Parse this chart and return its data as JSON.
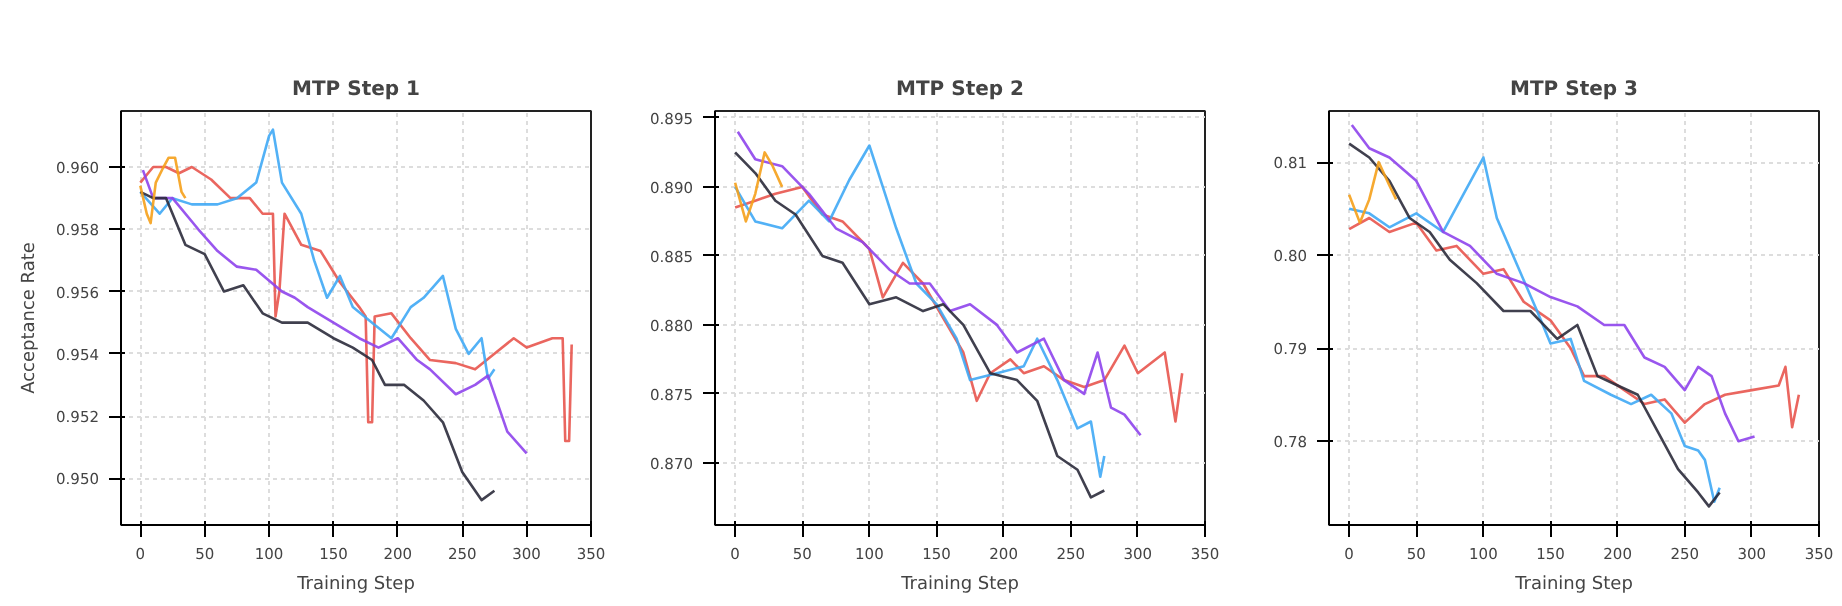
{
  "chart_data": [
    {
      "type": "line",
      "title": "MTP Step 1",
      "xlabel": "Training Step",
      "ylabel": "Acceptance Rate",
      "xlim": [
        -15,
        350
      ],
      "ylim": [
        0.9485,
        0.9618
      ],
      "xticks": [
        0,
        50,
        100,
        150,
        200,
        250,
        300,
        350
      ],
      "yticks": [
        {
          "value": 0.95,
          "label": "0.950"
        },
        0.952,
        0.954,
        0.956,
        0.958,
        {
          "value": 0.96,
          "label": "0.960"
        }
      ],
      "grid": true,
      "series": [
        {
          "color": "#e8554e",
          "x": [
            0,
            10,
            20,
            30,
            40,
            55,
            70,
            85,
            95,
            103,
            105,
            108,
            112,
            125,
            140,
            155,
            170,
            175,
            177,
            180,
            182,
            195,
            210,
            225,
            245,
            260,
            275,
            290,
            300,
            320,
            328,
            330,
            333,
            335
          ],
          "values": [
            0.9595,
            0.96,
            0.96,
            0.9598,
            0.96,
            0.9596,
            0.959,
            0.959,
            0.9585,
            0.9585,
            0.9552,
            0.956,
            0.9585,
            0.9575,
            0.9573,
            0.9563,
            0.9555,
            0.9552,
            0.9518,
            0.9518,
            0.9552,
            0.9553,
            0.9545,
            0.9538,
            0.9537,
            0.9535,
            0.954,
            0.9545,
            0.9542,
            0.9545,
            0.9545,
            0.9512,
            0.9512,
            0.9543
          ]
        },
        {
          "color": "#3fa9f5",
          "x": [
            0,
            15,
            25,
            40,
            60,
            75,
            90,
            100,
            103,
            110,
            125,
            135,
            145,
            155,
            165,
            180,
            195,
            210,
            220,
            235,
            245,
            255,
            265,
            270,
            275
          ],
          "values": [
            0.9592,
            0.9585,
            0.959,
            0.9588,
            0.9588,
            0.959,
            0.9595,
            0.961,
            0.9612,
            0.9595,
            0.9585,
            0.957,
            0.9558,
            0.9565,
            0.9555,
            0.955,
            0.9545,
            0.9555,
            0.9558,
            0.9565,
            0.9548,
            0.954,
            0.9545,
            0.9532,
            0.9535
          ]
        },
        {
          "color": "#8e44ec",
          "x": [
            2,
            10,
            25,
            45,
            60,
            75,
            90,
            110,
            120,
            130,
            150,
            170,
            185,
            200,
            215,
            225,
            245,
            260,
            270,
            285,
            300
          ],
          "values": [
            0.9599,
            0.959,
            0.959,
            0.958,
            0.9573,
            0.9568,
            0.9567,
            0.956,
            0.9558,
            0.9555,
            0.955,
            0.9545,
            0.9542,
            0.9545,
            0.9538,
            0.9535,
            0.9527,
            0.953,
            0.9533,
            0.9515,
            0.9508
          ]
        },
        {
          "color": "#2b2b3b",
          "x": [
            0,
            10,
            20,
            35,
            50,
            65,
            80,
            95,
            110,
            130,
            150,
            165,
            180,
            190,
            205,
            220,
            235,
            250,
            265,
            275
          ],
          "values": [
            0.9592,
            0.959,
            0.959,
            0.9575,
            0.9572,
            0.956,
            0.9562,
            0.9553,
            0.955,
            0.955,
            0.9545,
            0.9542,
            0.9538,
            0.953,
            0.953,
            0.9525,
            0.9518,
            0.9502,
            0.9493,
            0.9496
          ]
        },
        {
          "color": "#f5a01a",
          "x": [
            0,
            5,
            8,
            12,
            18,
            22,
            27,
            32,
            35
          ],
          "values": [
            0.9594,
            0.9585,
            0.9582,
            0.9595,
            0.96,
            0.9603,
            0.9603,
            0.9592,
            0.959
          ]
        }
      ]
    },
    {
      "type": "line",
      "title": "MTP Step 2",
      "xlabel": "Training Step",
      "xlim": [
        -15,
        350
      ],
      "ylim": [
        0.8655,
        0.8955
      ],
      "xticks": [
        0,
        50,
        100,
        150,
        200,
        250,
        300,
        350
      ],
      "yticks": [
        {
          "value": 0.87,
          "label": "0.870"
        },
        0.875,
        {
          "value": 0.88,
          "label": "0.880"
        },
        0.885,
        {
          "value": 0.89,
          "label": "0.890"
        },
        0.895
      ],
      "grid": true,
      "series": [
        {
          "color": "#e8554e",
          "x": [
            0,
            15,
            30,
            50,
            65,
            80,
            100,
            110,
            125,
            140,
            155,
            170,
            180,
            190,
            205,
            215,
            230,
            245,
            260,
            275,
            290,
            300,
            320,
            328,
            333
          ],
          "values": [
            0.8885,
            0.889,
            0.8895,
            0.89,
            0.888,
            0.8875,
            0.8855,
            0.882,
            0.8845,
            0.883,
            0.8805,
            0.878,
            0.8745,
            0.8765,
            0.8775,
            0.8765,
            0.877,
            0.876,
            0.8755,
            0.876,
            0.8785,
            0.8765,
            0.878,
            0.873,
            0.8765
          ]
        },
        {
          "color": "#3fa9f5",
          "x": [
            0,
            15,
            35,
            55,
            70,
            85,
            100,
            110,
            120,
            135,
            150,
            165,
            175,
            195,
            215,
            225,
            240,
            255,
            265,
            272,
            275
          ],
          "values": [
            0.89,
            0.8875,
            0.887,
            0.889,
            0.8875,
            0.8905,
            0.893,
            0.89,
            0.887,
            0.883,
            0.8815,
            0.879,
            0.876,
            0.8765,
            0.877,
            0.879,
            0.876,
            0.8725,
            0.873,
            0.869,
            0.8705
          ]
        },
        {
          "color": "#8e44ec",
          "x": [
            2,
            15,
            35,
            55,
            75,
            95,
            115,
            130,
            145,
            160,
            175,
            195,
            210,
            230,
            245,
            260,
            270,
            280,
            290,
            302
          ],
          "values": [
            0.894,
            0.892,
            0.8915,
            0.8895,
            0.887,
            0.886,
            0.884,
            0.883,
            0.883,
            0.881,
            0.8815,
            0.88,
            0.878,
            0.879,
            0.876,
            0.875,
            0.878,
            0.874,
            0.8735,
            0.872
          ]
        },
        {
          "color": "#2b2b3b",
          "x": [
            0,
            15,
            30,
            45,
            65,
            80,
            100,
            120,
            140,
            155,
            170,
            190,
            210,
            225,
            240,
            255,
            265,
            275
          ],
          "values": [
            0.8925,
            0.891,
            0.889,
            0.888,
            0.885,
            0.8845,
            0.8815,
            0.882,
            0.881,
            0.8815,
            0.88,
            0.8765,
            0.876,
            0.8745,
            0.8705,
            0.8695,
            0.8675,
            0.868
          ]
        },
        {
          "color": "#f5a01a",
          "x": [
            0,
            8,
            15,
            22,
            28,
            35
          ],
          "values": [
            0.8903,
            0.8875,
            0.8895,
            0.8925,
            0.8915,
            0.89
          ]
        }
      ]
    },
    {
      "type": "line",
      "title": "MTP Step 3",
      "xlabel": "Training Step",
      "xlim": [
        -15,
        350
      ],
      "ylim": [
        0.771,
        0.8155
      ],
      "xticks": [
        0,
        50,
        100,
        150,
        200,
        250,
        300,
        350
      ],
      "yticks": [
        0.78,
        0.79,
        {
          "value": 0.8,
          "label": "0.80"
        },
        0.81
      ],
      "grid": true,
      "series": [
        {
          "color": "#e8554e",
          "x": [
            0,
            15,
            30,
            50,
            65,
            80,
            100,
            115,
            130,
            150,
            165,
            175,
            190,
            205,
            220,
            235,
            250,
            265,
            280,
            300,
            320,
            325,
            330,
            335
          ],
          "values": [
            0.8028,
            0.804,
            0.8025,
            0.8035,
            0.8005,
            0.801,
            0.798,
            0.7985,
            0.795,
            0.793,
            0.79,
            0.787,
            0.787,
            0.7855,
            0.784,
            0.7845,
            0.782,
            0.784,
            0.785,
            0.7855,
            0.786,
            0.788,
            0.7815,
            0.785
          ]
        },
        {
          "color": "#3fa9f5",
          "x": [
            0,
            15,
            30,
            50,
            70,
            85,
            100,
            110,
            125,
            140,
            150,
            165,
            175,
            195,
            210,
            225,
            240,
            250,
            260,
            265,
            272,
            276
          ],
          "values": [
            0.805,
            0.8045,
            0.803,
            0.8045,
            0.8025,
            0.8065,
            0.8105,
            0.804,
            0.799,
            0.794,
            0.7905,
            0.791,
            0.7865,
            0.785,
            0.784,
            0.785,
            0.783,
            0.7795,
            0.779,
            0.778,
            0.7735,
            0.775
          ]
        },
        {
          "color": "#8e44ec",
          "x": [
            2,
            15,
            30,
            50,
            70,
            90,
            110,
            130,
            150,
            170,
            190,
            205,
            220,
            235,
            250,
            260,
            270,
            280,
            290,
            302
          ],
          "values": [
            0.814,
            0.8115,
            0.8105,
            0.808,
            0.8025,
            0.801,
            0.798,
            0.797,
            0.7955,
            0.7945,
            0.7925,
            0.7925,
            0.789,
            0.788,
            0.7855,
            0.788,
            0.787,
            0.783,
            0.78,
            0.7805
          ]
        },
        {
          "color": "#2b2b3b",
          "x": [
            0,
            15,
            30,
            45,
            60,
            75,
            95,
            115,
            135,
            155,
            170,
            185,
            200,
            215,
            230,
            245,
            260,
            268,
            276
          ],
          "values": [
            0.812,
            0.8105,
            0.808,
            0.804,
            0.8025,
            0.7995,
            0.797,
            0.794,
            0.794,
            0.791,
            0.7925,
            0.787,
            0.786,
            0.785,
            0.781,
            0.777,
            0.7745,
            0.773,
            0.7745
          ]
        },
        {
          "color": "#f5a01a",
          "x": [
            0,
            8,
            15,
            22,
            30,
            35
          ],
          "values": [
            0.8065,
            0.8035,
            0.806,
            0.81,
            0.8075,
            0.806
          ]
        }
      ]
    }
  ]
}
